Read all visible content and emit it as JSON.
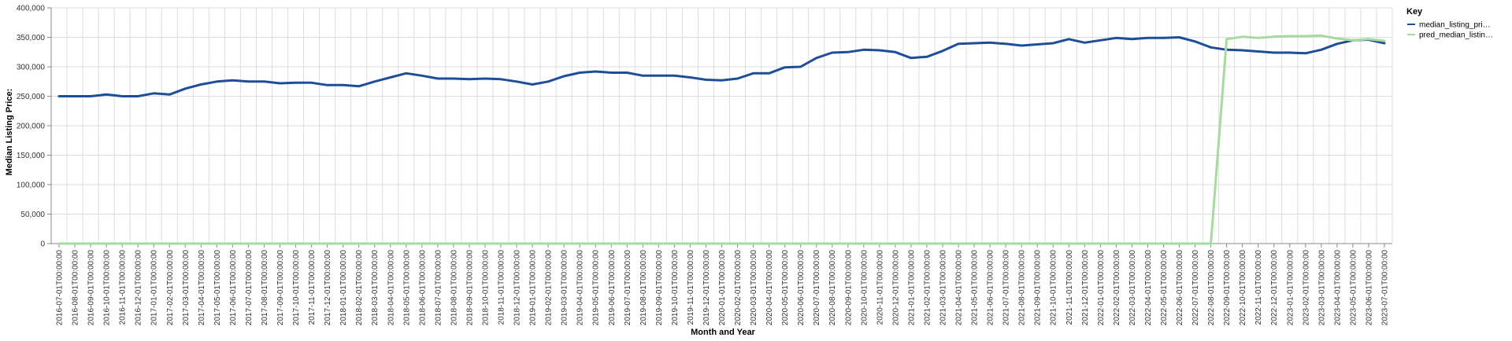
{
  "chart_data": {
    "type": "line",
    "xlabel": "Month and Year",
    "ylabel": "Median Listing Price:",
    "ylim": [
      0,
      400000
    ],
    "y_ticks": [
      0,
      50000,
      100000,
      150000,
      200000,
      250000,
      300000,
      350000,
      400000
    ],
    "y_tick_labels": [
      "0",
      "50,000",
      "100,000",
      "150,000",
      "200,000",
      "250,000",
      "300,000",
      "350,000",
      "400,000"
    ],
    "grid": true,
    "legend": {
      "title": "Key",
      "placement": "top-right"
    },
    "x": [
      "2016-07-01T00:00:00",
      "2016-08-01T00:00:00",
      "2016-09-01T00:00:00",
      "2016-10-01T00:00:00",
      "2016-11-01T00:00:00",
      "2016-12-01T00:00:00",
      "2017-01-01T00:00:00",
      "2017-02-01T00:00:00",
      "2017-03-01T00:00:00",
      "2017-04-01T00:00:00",
      "2017-05-01T00:00:00",
      "2017-06-01T00:00:00",
      "2017-07-01T00:00:00",
      "2017-08-01T00:00:00",
      "2017-09-01T00:00:00",
      "2017-10-01T00:00:00",
      "2017-11-01T00:00:00",
      "2017-12-01T00:00:00",
      "2018-01-01T00:00:00",
      "2018-02-01T00:00:00",
      "2018-03-01T00:00:00",
      "2018-04-01T00:00:00",
      "2018-05-01T00:00:00",
      "2018-06-01T00:00:00",
      "2018-07-01T00:00:00",
      "2018-08-01T00:00:00",
      "2018-09-01T00:00:00",
      "2018-10-01T00:00:00",
      "2018-11-01T00:00:00",
      "2018-12-01T00:00:00",
      "2019-01-01T00:00:00",
      "2019-02-01T00:00:00",
      "2019-03-01T00:00:00",
      "2019-04-01T00:00:00",
      "2019-05-01T00:00:00",
      "2019-06-01T00:00:00",
      "2019-07-01T00:00:00",
      "2019-08-01T00:00:00",
      "2019-09-01T00:00:00",
      "2019-10-01T00:00:00",
      "2019-11-01T00:00:00",
      "2019-12-01T00:00:00",
      "2020-01-01T00:00:00",
      "2020-02-01T00:00:00",
      "2020-03-01T00:00:00",
      "2020-04-01T00:00:00",
      "2020-05-01T00:00:00",
      "2020-06-01T00:00:00",
      "2020-07-01T00:00:00",
      "2020-08-01T00:00:00",
      "2020-09-01T00:00:00",
      "2020-10-01T00:00:00",
      "2020-11-01T00:00:00",
      "2020-12-01T00:00:00",
      "2021-01-01T00:00:00",
      "2021-02-01T00:00:00",
      "2021-03-01T00:00:00",
      "2021-04-01T00:00:00",
      "2021-05-01T00:00:00",
      "2021-06-01T00:00:00",
      "2021-07-01T00:00:00",
      "2021-08-01T00:00:00",
      "2021-09-01T00:00:00",
      "2021-10-01T00:00:00",
      "2021-11-01T00:00:00",
      "2021-12-01T00:00:00",
      "2022-01-01T00:00:00",
      "2022-02-01T00:00:00",
      "2022-03-01T00:00:00",
      "2022-04-01T00:00:00",
      "2022-05-01T00:00:00",
      "2022-06-01T00:00:00",
      "2022-07-01T00:00:00",
      "2022-08-01T00:00:00",
      "2022-09-01T00:00:00",
      "2022-10-01T00:00:00",
      "2022-11-01T00:00:00",
      "2022-12-01T00:00:00",
      "2023-01-01T00:00:00",
      "2023-02-01T00:00:00",
      "2023-03-01T00:00:00",
      "2023-04-01T00:00:00",
      "2023-05-01T00:00:00",
      "2023-06-01T00:00:00",
      "2023-07-01T00:00:00"
    ],
    "series": [
      {
        "name": "median_listing_pri…",
        "color": "#1f4e99",
        "values": [
          250000,
          250000,
          250000,
          253000,
          250000,
          250000,
          255000,
          253000,
          263000,
          270000,
          275000,
          277000,
          275000,
          275000,
          272000,
          273000,
          273000,
          269000,
          269000,
          267000,
          275000,
          282000,
          289000,
          285000,
          280000,
          280000,
          279000,
          280000,
          279000,
          275000,
          270000,
          275000,
          284000,
          290000,
          292000,
          290000,
          290000,
          285000,
          285000,
          285000,
          282000,
          278000,
          277000,
          280000,
          289000,
          289000,
          299000,
          300000,
          315000,
          324000,
          325000,
          329000,
          328000,
          325000,
          315000,
          317000,
          327000,
          339000,
          340000,
          341000,
          339000,
          336000,
          338000,
          340000,
          347000,
          341000,
          345000,
          349000,
          347000,
          349000,
          349000,
          350000,
          343000,
          333000,
          329000,
          328000,
          326000,
          324000,
          324000,
          323000,
          329000,
          339000,
          345000,
          346000,
          340000
        ]
      },
      {
        "name": "pred_median_listin…",
        "color": "#a6dba0",
        "values": [
          0,
          0,
          0,
          0,
          0,
          0,
          0,
          0,
          0,
          0,
          0,
          0,
          0,
          0,
          0,
          0,
          0,
          0,
          0,
          0,
          0,
          0,
          0,
          0,
          0,
          0,
          0,
          0,
          0,
          0,
          0,
          0,
          0,
          0,
          0,
          0,
          0,
          0,
          0,
          0,
          0,
          0,
          0,
          0,
          0,
          0,
          0,
          0,
          0,
          0,
          0,
          0,
          0,
          0,
          0,
          0,
          0,
          0,
          0,
          0,
          0,
          0,
          0,
          0,
          0,
          0,
          0,
          0,
          0,
          0,
          0,
          0,
          0,
          0,
          347000,
          351000,
          349000,
          351000,
          352000,
          352000,
          353000,
          348000,
          345000,
          347000,
          344000
        ]
      }
    ]
  }
}
